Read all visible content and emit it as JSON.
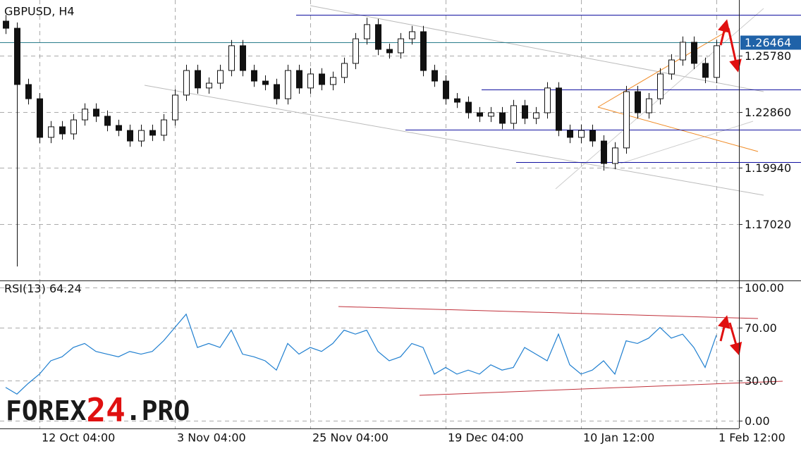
{
  "chart_data": [
    {
      "type": "candlestick",
      "title": "GBPUSD, H4",
      "categories": [
        null,
        null,
        null,
        "12 Oct 04:00",
        null,
        null,
        null,
        null,
        null,
        null,
        null,
        null,
        null,
        null,
        null,
        "3 Nov 04:00",
        null,
        null,
        null,
        null,
        null,
        null,
        null,
        null,
        null,
        null,
        null,
        "25 Nov 04:00",
        null,
        null,
        null,
        null,
        null,
        null,
        null,
        null,
        null,
        null,
        null,
        "19 Dec 04:00",
        null,
        null,
        null,
        null,
        null,
        null,
        null,
        null,
        null,
        null,
        null,
        "10 Jan 12:00",
        null,
        null,
        null,
        null,
        null,
        null,
        null,
        null,
        null,
        null,
        null,
        "1 Feb 12:00"
      ],
      "open": [
        1.2758,
        1.2721,
        1.2428,
        1.2354,
        1.2153,
        1.2208,
        1.2171,
        1.2244,
        1.23,
        1.2263,
        1.2215,
        1.2189,
        1.2134,
        1.2189,
        1.2164,
        1.2244,
        1.2373,
        1.2501,
        1.241,
        1.2435,
        1.2501,
        1.263,
        1.2501,
        1.2446,
        1.2428,
        1.2354,
        1.2501,
        1.241,
        1.2483,
        1.2428,
        1.2465,
        1.2538,
        1.2666,
        1.274,
        1.2611,
        1.2593,
        1.2666,
        1.2703,
        1.2501,
        1.2446,
        1.2354,
        1.2336,
        1.2281,
        1.2263,
        1.2281,
        1.2226,
        1.2318,
        1.2252,
        1.2281,
        1.241,
        1.2189,
        1.2153,
        1.2189,
        1.2134,
        1.2017,
        1.2098,
        1.2391,
        1.2281,
        1.2354,
        1.2483,
        1.2556,
        1.2648,
        1.2538,
        1.2465
      ],
      "high": [
        1.279,
        1.2751,
        1.2458,
        1.2384,
        1.2238,
        1.2238,
        1.2274,
        1.233,
        1.233,
        1.2293,
        1.2245,
        1.2219,
        1.2219,
        1.2219,
        1.2274,
        1.2403,
        1.2531,
        1.2531,
        1.2465,
        1.2531,
        1.266,
        1.266,
        1.2531,
        1.2476,
        1.2458,
        1.2531,
        1.2531,
        1.2513,
        1.2513,
        1.2495,
        1.2568,
        1.2696,
        1.2776,
        1.277,
        1.2641,
        1.2696,
        1.2733,
        1.2733,
        1.2531,
        1.2476,
        1.2384,
        1.2366,
        1.2311,
        1.2311,
        1.2311,
        1.2348,
        1.2348,
        1.2311,
        1.244,
        1.244,
        1.2219,
        1.2219,
        1.2219,
        1.2164,
        1.2128,
        1.2421,
        1.2421,
        1.2384,
        1.2513,
        1.2586,
        1.2678,
        1.2678,
        1.2568,
        1.266
      ],
      "low": [
        1.2691,
        1.1481,
        1.2324,
        1.2123,
        1.2123,
        1.2141,
        1.2141,
        1.2214,
        1.2233,
        1.2185,
        1.2159,
        1.2104,
        1.2104,
        1.2134,
        1.2134,
        1.2214,
        1.2343,
        1.238,
        1.238,
        1.2405,
        1.2471,
        1.2471,
        1.2416,
        1.2398,
        1.2324,
        1.2324,
        1.238,
        1.238,
        1.2398,
        1.2398,
        1.2435,
        1.2508,
        1.2636,
        1.2581,
        1.2563,
        1.2563,
        1.2636,
        1.2471,
        1.2416,
        1.2324,
        1.2306,
        1.2251,
        1.2233,
        1.2233,
        1.2196,
        1.2196,
        1.2222,
        1.2222,
        1.2251,
        1.2159,
        1.2123,
        1.2123,
        1.2104,
        1.198,
        1.1987,
        1.2068,
        1.2251,
        1.2251,
        1.2324,
        1.2453,
        1.2526,
        1.2508,
        1.2435,
        1.2435
      ],
      "close": [
        1.2721,
        1.2428,
        1.2354,
        1.2153,
        1.2208,
        1.2171,
        1.2244,
        1.23,
        1.2263,
        1.2215,
        1.2189,
        1.2134,
        1.2189,
        1.2164,
        1.2244,
        1.2373,
        1.2501,
        1.241,
        1.2435,
        1.2501,
        1.263,
        1.2501,
        1.2446,
        1.2428,
        1.2354,
        1.2501,
        1.241,
        1.2483,
        1.2428,
        1.2465,
        1.2538,
        1.2666,
        1.274,
        1.2611,
        1.2593,
        1.2666,
        1.2703,
        1.2501,
        1.2446,
        1.2354,
        1.2336,
        1.2281,
        1.2263,
        1.2281,
        1.2226,
        1.2318,
        1.2252,
        1.2281,
        1.241,
        1.2189,
        1.2153,
        1.2189,
        1.2134,
        1.2017,
        1.2098,
        1.2391,
        1.2281,
        1.2354,
        1.2483,
        1.2556,
        1.2648,
        1.2538,
        1.2465,
        1.263
      ],
      "ylim": [
        1.1408,
        1.2868
      ],
      "yticks": [
        {
          "value": 1.1702,
          "label": "1.17020"
        },
        {
          "value": 1.1994,
          "label": "1.19940"
        },
        {
          "value": 1.2286,
          "label": "1.22860"
        },
        {
          "value": 1.2578,
          "label": "1.25780"
        }
      ],
      "last_price": 1.26464,
      "levels": [
        1.2791,
        1.2402,
        1.2193,
        1.2024
      ],
      "grid": true
    },
    {
      "type": "line",
      "name": "RSI(13)",
      "color": "#1f7fd0",
      "values": [
        25,
        20,
        28,
        35,
        45,
        48,
        55,
        58,
        52,
        50,
        48,
        52,
        50,
        52,
        60,
        70,
        80,
        55,
        58,
        55,
        68,
        50,
        48,
        45,
        38,
        58,
        50,
        55,
        52,
        58,
        68,
        65,
        68,
        52,
        45,
        48,
        58,
        55,
        35,
        40,
        35,
        38,
        35,
        42,
        38,
        40,
        55,
        50,
        45,
        65,
        42,
        35,
        38,
        45,
        35,
        60,
        58,
        62,
        70,
        62,
        65,
        55,
        40,
        64.24
      ],
      "ylim": [
        -5.8,
        105.3
      ],
      "yticks": [
        {
          "value": 0,
          "label": "0.00"
        },
        {
          "value": 30,
          "label": "30.00"
        },
        {
          "value": 70,
          "label": "70.00"
        },
        {
          "value": 100,
          "label": "100.00"
        }
      ],
      "grid": true
    },
    {
      "type": "watermark",
      "parts": [
        "FOREX",
        "24",
        ".PRO"
      ]
    }
  ]
}
